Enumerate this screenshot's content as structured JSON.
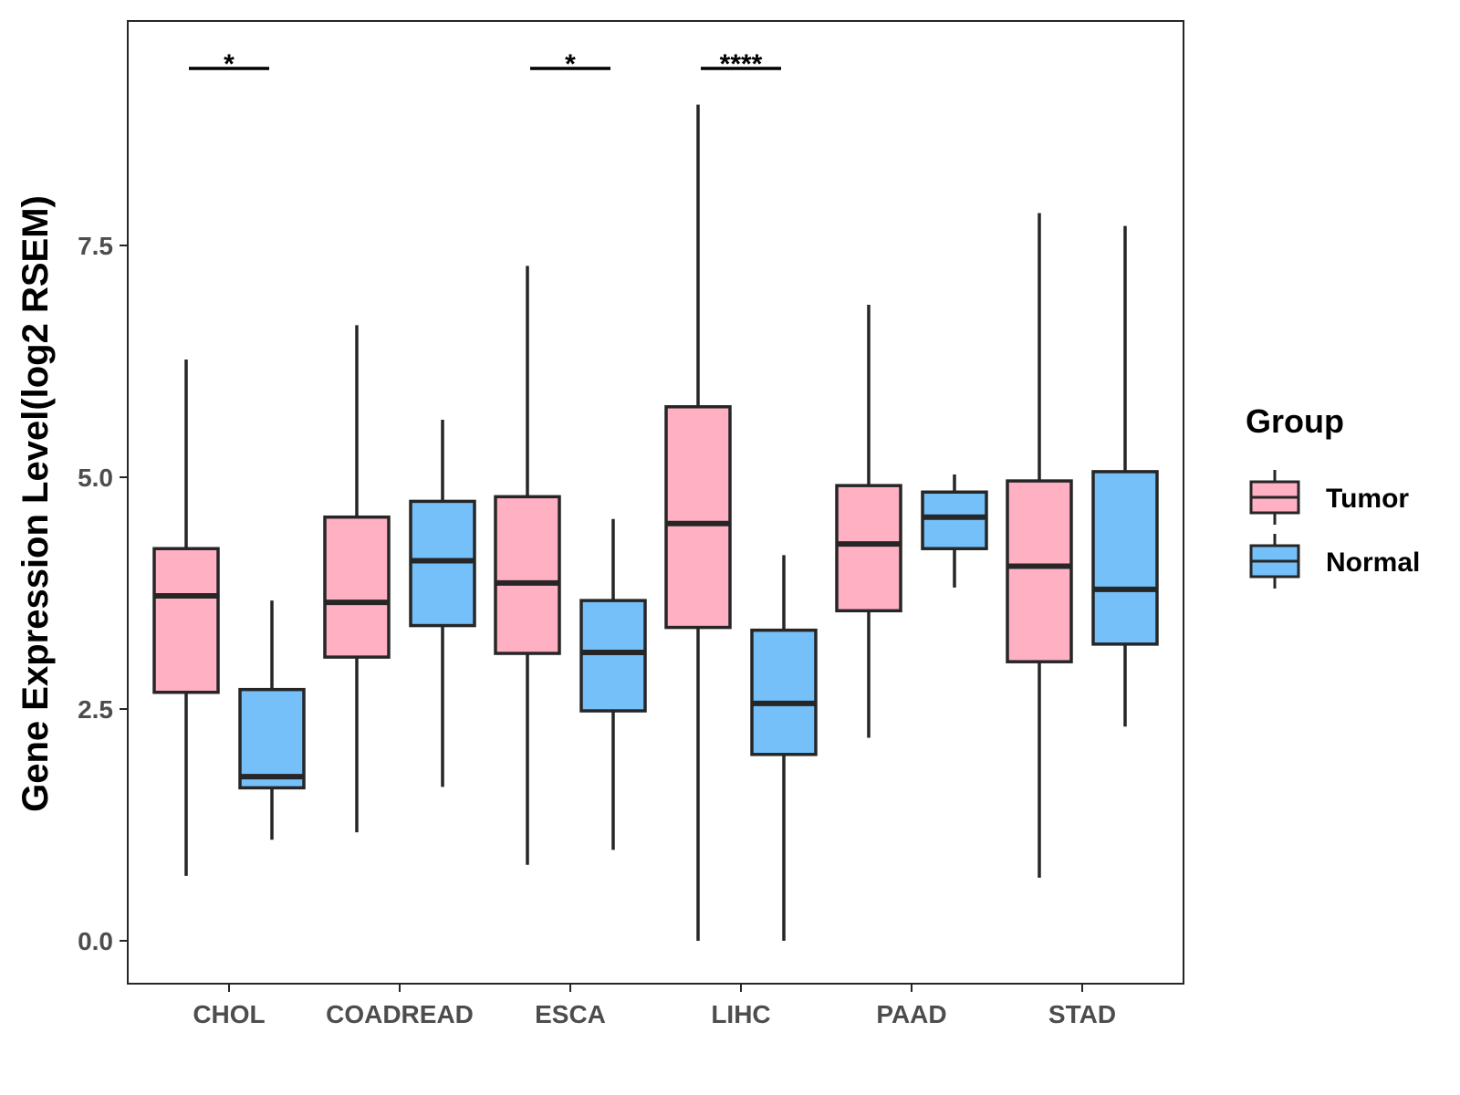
{
  "chart_data": {
    "type": "box",
    "title": "",
    "xlabel": "",
    "ylabel": "Gene Expression Level(log2 RSEM)",
    "ylim": [
      -0.45,
      9.9
    ],
    "yticks": [
      0.0,
      2.5,
      5.0,
      7.5
    ],
    "ytick_labels": [
      "0.0",
      "2.5",
      "5.0",
      "7.5"
    ],
    "grid": false,
    "legend": {
      "title": "Group",
      "position": "right",
      "entries": [
        {
          "name": "Tumor",
          "color": "#FFB0C3"
        },
        {
          "name": "Normal",
          "color": "#75C0F9"
        }
      ]
    },
    "categories": [
      "CHOL",
      "COADREAD",
      "ESCA",
      "LIHC",
      "PAAD",
      "STAD"
    ],
    "series": [
      {
        "name": "Tumor",
        "color": "#FFB0C3",
        "boxes": [
          {
            "whisker_low": 0.7,
            "q1": 2.68,
            "median": 3.72,
            "q3": 4.23,
            "whisker_high": 6.27
          },
          {
            "whisker_low": 1.17,
            "q1": 3.06,
            "median": 3.65,
            "q3": 4.57,
            "whisker_high": 6.64
          },
          {
            "whisker_low": 0.82,
            "q1": 3.1,
            "median": 3.86,
            "q3": 4.79,
            "whisker_high": 7.28
          },
          {
            "whisker_low": 0.0,
            "q1": 3.38,
            "median": 4.5,
            "q3": 5.76,
            "whisker_high": 9.02
          },
          {
            "whisker_low": 2.19,
            "q1": 3.56,
            "median": 4.28,
            "q3": 4.91,
            "whisker_high": 6.86
          },
          {
            "whisker_low": 0.68,
            "q1": 3.01,
            "median": 4.04,
            "q3": 4.96,
            "whisker_high": 7.85
          }
        ]
      },
      {
        "name": "Normal",
        "color": "#75C0F9",
        "boxes": [
          {
            "whisker_low": 1.09,
            "q1": 1.65,
            "median": 1.77,
            "q3": 2.71,
            "whisker_high": 3.67
          },
          {
            "whisker_low": 1.66,
            "q1": 3.4,
            "median": 4.1,
            "q3": 4.74,
            "whisker_high": 5.62
          },
          {
            "whisker_low": 0.98,
            "q1": 2.48,
            "median": 3.11,
            "q3": 3.67,
            "whisker_high": 4.55
          },
          {
            "whisker_low": 0.0,
            "q1": 2.01,
            "median": 2.56,
            "q3": 3.35,
            "whisker_high": 4.16
          },
          {
            "whisker_low": 3.81,
            "q1": 4.23,
            "median": 4.57,
            "q3": 4.84,
            "whisker_high": 5.03
          },
          {
            "whisker_low": 2.31,
            "q1": 3.2,
            "median": 3.79,
            "q3": 5.06,
            "whisker_high": 7.71
          }
        ]
      }
    ],
    "significance": [
      {
        "category": "CHOL",
        "label": "*"
      },
      {
        "category": "ESCA",
        "label": "*"
      },
      {
        "category": "LIHC",
        "label": "****"
      }
    ]
  }
}
